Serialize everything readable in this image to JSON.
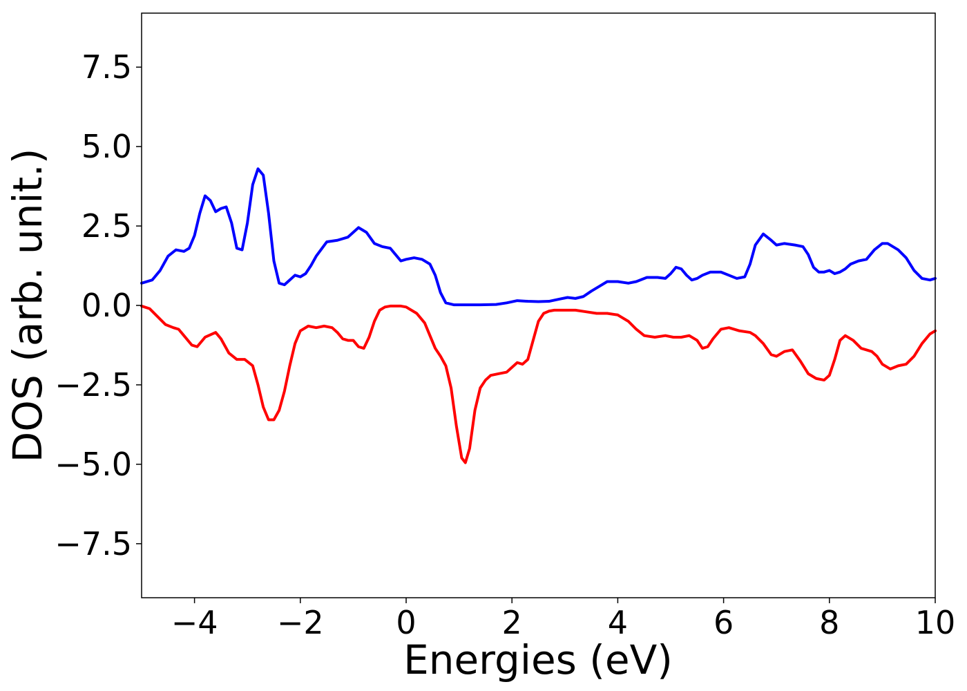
{
  "chart_data": {
    "type": "line",
    "title": "",
    "xlabel": "Energies (eV)",
    "ylabel": "DOS (arb. unit.)",
    "xlim": [
      -5,
      10
    ],
    "ylim": [
      -9.2,
      9.2
    ],
    "grid": false,
    "legend": "none",
    "x_ticks": [
      -4,
      -2,
      0,
      2,
      4,
      6,
      8,
      10
    ],
    "x_tick_labels": [
      "−4",
      "−2",
      "0",
      "2",
      "4",
      "6",
      "8",
      "10"
    ],
    "y_ticks": [
      7.5,
      5.0,
      2.5,
      0.0,
      -2.5,
      -5.0,
      -7.5
    ],
    "y_tick_labels": [
      "7.5",
      "5.0",
      "2.5",
      "0.0",
      "−2.5",
      "−5.0",
      "−7.5"
    ],
    "series": [
      {
        "color": "#0000ff",
        "x": [
          -5.0,
          -4.8,
          -4.65,
          -4.5,
          -4.35,
          -4.2,
          -4.1,
          -4.0,
          -3.9,
          -3.8,
          -3.7,
          -3.6,
          -3.5,
          -3.4,
          -3.3,
          -3.2,
          -3.1,
          -3.0,
          -2.9,
          -2.8,
          -2.7,
          -2.6,
          -2.5,
          -2.4,
          -2.3,
          -2.2,
          -2.1,
          -2.0,
          -1.9,
          -1.8,
          -1.7,
          -1.5,
          -1.3,
          -1.1,
          -1.0,
          -0.9,
          -0.75,
          -0.6,
          -0.45,
          -0.3,
          -0.2,
          -0.1,
          0.0,
          0.15,
          0.3,
          0.45,
          0.55,
          0.65,
          0.75,
          0.9,
          1.1,
          1.4,
          1.7,
          1.9,
          2.1,
          2.3,
          2.5,
          2.7,
          2.9,
          3.05,
          3.2,
          3.35,
          3.5,
          3.65,
          3.8,
          4.0,
          4.2,
          4.35,
          4.55,
          4.75,
          4.9,
          5.0,
          5.1,
          5.2,
          5.3,
          5.4,
          5.5,
          5.6,
          5.75,
          5.95,
          6.1,
          6.25,
          6.4,
          6.5,
          6.6,
          6.75,
          6.9,
          7.0,
          7.15,
          7.35,
          7.5,
          7.6,
          7.7,
          7.8,
          7.9,
          8.0,
          8.1,
          8.2,
          8.3,
          8.4,
          8.55,
          8.7,
          8.85,
          9.0,
          9.1,
          9.3,
          9.45,
          9.6,
          9.75,
          9.9,
          10.0
        ],
        "y": [
          0.7,
          0.8,
          1.1,
          1.55,
          1.75,
          1.7,
          1.8,
          2.2,
          2.9,
          3.45,
          3.3,
          2.95,
          3.05,
          3.1,
          2.6,
          1.8,
          1.75,
          2.6,
          3.8,
          4.3,
          4.1,
          2.9,
          1.4,
          0.7,
          0.65,
          0.8,
          0.95,
          0.9,
          1.0,
          1.25,
          1.55,
          2.0,
          2.05,
          2.15,
          2.3,
          2.45,
          2.3,
          1.95,
          1.85,
          1.8,
          1.6,
          1.4,
          1.45,
          1.5,
          1.45,
          1.3,
          0.95,
          0.4,
          0.08,
          0.02,
          0.02,
          0.02,
          0.03,
          0.08,
          0.15,
          0.13,
          0.12,
          0.13,
          0.2,
          0.25,
          0.22,
          0.28,
          0.45,
          0.6,
          0.75,
          0.75,
          0.7,
          0.75,
          0.88,
          0.88,
          0.85,
          1.0,
          1.2,
          1.15,
          0.95,
          0.8,
          0.85,
          0.95,
          1.05,
          1.05,
          0.95,
          0.85,
          0.9,
          1.3,
          1.9,
          2.25,
          2.05,
          1.9,
          1.95,
          1.9,
          1.85,
          1.6,
          1.2,
          1.05,
          1.05,
          1.1,
          1.0,
          1.05,
          1.15,
          1.3,
          1.4,
          1.45,
          1.75,
          1.95,
          1.95,
          1.75,
          1.5,
          1.1,
          0.85,
          0.8,
          0.85
        ]
      },
      {
        "color": "#ff0000",
        "x": [
          -5.0,
          -4.85,
          -4.7,
          -4.55,
          -4.4,
          -4.3,
          -4.2,
          -4.05,
          -3.95,
          -3.8,
          -3.6,
          -3.5,
          -3.35,
          -3.2,
          -3.05,
          -2.9,
          -2.8,
          -2.7,
          -2.6,
          -2.5,
          -2.4,
          -2.3,
          -2.2,
          -2.1,
          -2.0,
          -1.85,
          -1.7,
          -1.55,
          -1.4,
          -1.3,
          -1.2,
          -1.1,
          -1.0,
          -0.9,
          -0.8,
          -0.7,
          -0.6,
          -0.5,
          -0.4,
          -0.3,
          -0.2,
          -0.1,
          0.0,
          0.2,
          0.35,
          0.45,
          0.55,
          0.65,
          0.75,
          0.85,
          0.95,
          1.05,
          1.12,
          1.2,
          1.3,
          1.4,
          1.5,
          1.6,
          1.75,
          1.9,
          2.0,
          2.1,
          2.2,
          2.3,
          2.4,
          2.5,
          2.6,
          2.7,
          2.8,
          3.0,
          3.2,
          3.4,
          3.6,
          3.8,
          4.0,
          4.2,
          4.35,
          4.5,
          4.7,
          4.9,
          5.05,
          5.2,
          5.35,
          5.5,
          5.6,
          5.7,
          5.8,
          5.95,
          6.1,
          6.3,
          6.5,
          6.6,
          6.75,
          6.9,
          7.0,
          7.15,
          7.3,
          7.45,
          7.6,
          7.75,
          7.9,
          8.0,
          8.1,
          8.2,
          8.3,
          8.45,
          8.6,
          8.8,
          8.9,
          9.0,
          9.15,
          9.3,
          9.45,
          9.6,
          9.75,
          9.9,
          10.0
        ],
        "y": [
          -0.02,
          -0.1,
          -0.35,
          -0.6,
          -0.7,
          -0.75,
          -0.95,
          -1.25,
          -1.3,
          -1.0,
          -0.85,
          -1.05,
          -1.5,
          -1.7,
          -1.7,
          -1.9,
          -2.5,
          -3.2,
          -3.6,
          -3.6,
          -3.3,
          -2.7,
          -1.9,
          -1.2,
          -0.8,
          -0.65,
          -0.7,
          -0.65,
          -0.7,
          -0.85,
          -1.05,
          -1.1,
          -1.1,
          -1.3,
          -1.35,
          -1.0,
          -0.5,
          -0.15,
          -0.05,
          -0.02,
          -0.02,
          -0.02,
          -0.05,
          -0.25,
          -0.55,
          -0.95,
          -1.35,
          -1.6,
          -1.9,
          -2.6,
          -3.8,
          -4.8,
          -4.95,
          -4.5,
          -3.3,
          -2.6,
          -2.35,
          -2.2,
          -2.15,
          -2.1,
          -1.95,
          -1.8,
          -1.85,
          -1.7,
          -1.1,
          -0.5,
          -0.25,
          -0.18,
          -0.15,
          -0.15,
          -0.15,
          -0.2,
          -0.25,
          -0.25,
          -0.3,
          -0.5,
          -0.75,
          -0.95,
          -1.0,
          -0.95,
          -1.0,
          -1.0,
          -0.95,
          -1.1,
          -1.35,
          -1.3,
          -1.05,
          -0.75,
          -0.7,
          -0.8,
          -0.85,
          -0.95,
          -1.2,
          -1.55,
          -1.6,
          -1.45,
          -1.4,
          -1.75,
          -2.15,
          -2.3,
          -2.35,
          -2.2,
          -1.7,
          -1.1,
          -0.95,
          -1.1,
          -1.35,
          -1.45,
          -1.6,
          -1.85,
          -2.0,
          -1.9,
          -1.85,
          -1.6,
          -1.2,
          -0.9,
          -0.8
        ]
      }
    ]
  }
}
